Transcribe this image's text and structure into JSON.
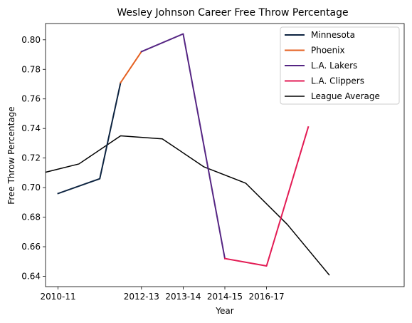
{
  "chart_data": {
    "type": "line",
    "title": "Wesley Johnson  Career Free Throw Percentage",
    "xlabel": "Year",
    "ylabel": "Free Throw Percentage",
    "x": [
      0,
      1,
      2,
      3,
      4,
      5,
      6,
      7,
      8
    ],
    "xlim": [
      -0.3,
      8.3
    ],
    "ylim": [
      0.633,
      0.811
    ],
    "xticks": [
      {
        "x": 0,
        "label": "2010-11"
      },
      {
        "x": 2,
        "label": "2012-13"
      },
      {
        "x": 3,
        "label": "2013-14"
      },
      {
        "x": 4,
        "label": "2014-15"
      },
      {
        "x": 5,
        "label": "2016-17"
      }
    ],
    "yticks": [
      {
        "y": 0.64,
        "label": "0.64"
      },
      {
        "y": 0.66,
        "label": "0.66"
      },
      {
        "y": 0.68,
        "label": "0.68"
      },
      {
        "y": 0.7,
        "label": "0.70"
      },
      {
        "y": 0.72,
        "label": "0.72"
      },
      {
        "y": 0.74,
        "label": "0.74"
      },
      {
        "y": 0.76,
        "label": "0.76"
      },
      {
        "y": 0.78,
        "label": "0.78"
      },
      {
        "y": 0.8,
        "label": "0.80"
      }
    ],
    "grid": false,
    "legend_position": "top-right",
    "series": [
      {
        "name": "Minnesota",
        "color": "#0c2340",
        "width": 2,
        "points": [
          [
            0,
            0.696
          ],
          [
            1,
            0.706
          ],
          [
            1.5,
            0.771
          ]
        ]
      },
      {
        "name": "Phoenix",
        "color": "#e56020",
        "width": 2,
        "points": [
          [
            1.5,
            0.771
          ],
          [
            2,
            0.792
          ]
        ]
      },
      {
        "name": "L.A. Lakers",
        "color": "#552583",
        "width": 2,
        "points": [
          [
            2,
            0.792
          ],
          [
            3,
            0.804
          ],
          [
            4,
            0.652
          ]
        ]
      },
      {
        "name": "L.A. Clippers",
        "color": "#e31b54",
        "width": 2,
        "points": [
          [
            4,
            0.652
          ],
          [
            5,
            0.647
          ],
          [
            6,
            0.741
          ]
        ]
      },
      {
        "name": "League Average",
        "color": "#000000",
        "width": 1.5,
        "points": [
          [
            -0.5,
            0.709
          ],
          [
            0.5,
            0.716
          ],
          [
            1.5,
            0.735
          ],
          [
            2.5,
            0.733
          ],
          [
            3.5,
            0.714
          ],
          [
            4.5,
            0.703
          ],
          [
            5.5,
            0.675
          ],
          [
            6.5,
            0.641
          ]
        ]
      }
    ]
  }
}
